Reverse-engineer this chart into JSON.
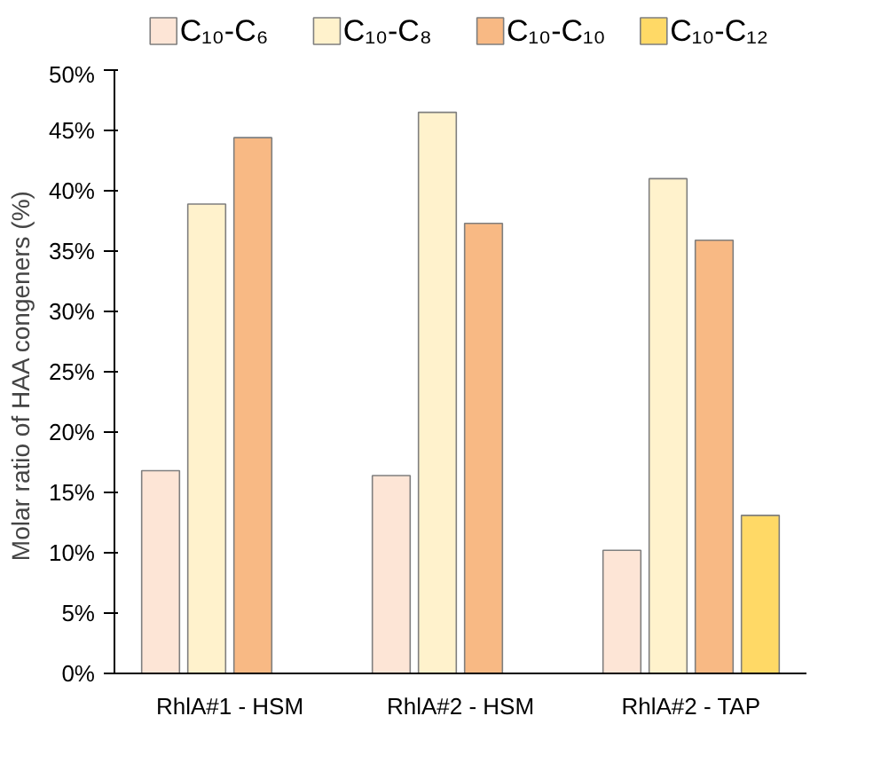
{
  "chart_data": {
    "type": "bar",
    "ylabel": "Molar ratio  of HAA congeners (%)",
    "categories": [
      "RhlA#1 - HSM",
      "RhlA#2 - HSM",
      "RhlA#2 - TAP"
    ],
    "series": [
      {
        "name": "C₁₀-C₆",
        "color": "#fde5d6",
        "values": [
          16.8,
          16.4,
          10.2
        ]
      },
      {
        "name": "C₁₀-C₈",
        "color": "#fff2cc",
        "values": [
          38.9,
          46.5,
          41.0
        ]
      },
      {
        "name": "C₁₀-C₁₀",
        "color": "#f8b984",
        "values": [
          44.4,
          37.3,
          35.9
        ]
      },
      {
        "name": "C₁₀-C₁₂",
        "color": "#ffd966",
        "values": [
          null,
          null,
          13.1
        ]
      }
    ],
    "ylim": [
      0,
      50
    ],
    "yticks": [
      {
        "value": 0,
        "label": "0%"
      },
      {
        "value": 5,
        "label": "5%"
      },
      {
        "value": 10,
        "label": "10%"
      },
      {
        "value": 15,
        "label": "15%"
      },
      {
        "value": 20,
        "label": "20%"
      },
      {
        "value": 25,
        "label": "25%"
      },
      {
        "value": 30,
        "label": "30%"
      },
      {
        "value": 35,
        "label": "35%"
      },
      {
        "value": 40,
        "label": "40%"
      },
      {
        "value": 45,
        "label": "45%"
      },
      {
        "value": 50,
        "label": "50%"
      }
    ],
    "grid": false,
    "legend": "top"
  }
}
